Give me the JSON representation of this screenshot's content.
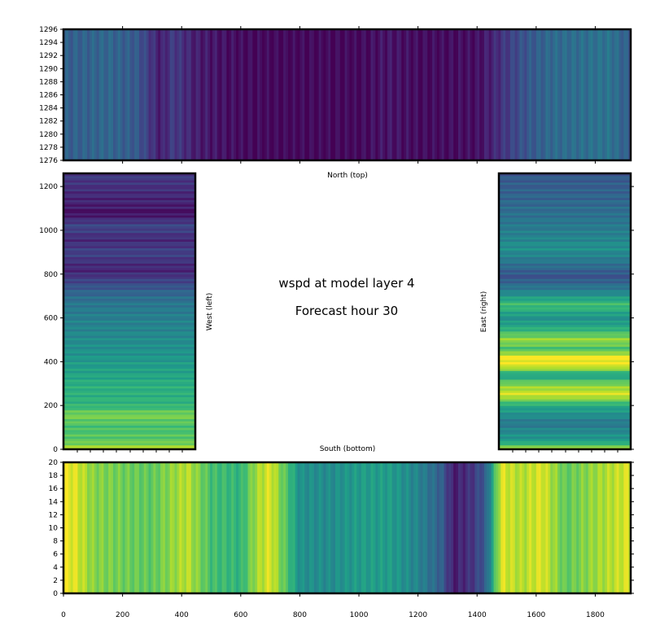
{
  "chart_data": [
    {
      "type": "heatmap",
      "panel": "north",
      "label": "North (top)",
      "colormap": "viridis",
      "x_ticks": [],
      "y_ticks": [
        1276,
        1278,
        1280,
        1282,
        1284,
        1286,
        1288,
        1290,
        1292,
        1294,
        1296
      ],
      "xlim": [
        0,
        1920
      ],
      "ylim": [
        1276,
        1296
      ],
      "x_tick_positions": [
        200,
        400,
        600,
        800,
        1000,
        1200,
        1400,
        1600,
        1800
      ],
      "profile_x": [
        0,
        150,
        250,
        300,
        330,
        370,
        450,
        600,
        700,
        800,
        1000,
        1100,
        1200,
        1300,
        1400,
        1450,
        1550,
        1650,
        1750,
        1850,
        1920
      ],
      "profile_v": [
        0.3,
        0.33,
        0.28,
        0.15,
        0.08,
        0.18,
        0.08,
        0.03,
        0.02,
        0.02,
        0.02,
        0.06,
        0.03,
        0.03,
        0.04,
        0.1,
        0.25,
        0.34,
        0.36,
        0.38,
        0.28
      ]
    },
    {
      "type": "heatmap",
      "panel": "west",
      "label": "West (left)",
      "colormap": "viridis",
      "x_ticks": [],
      "y_ticks": [
        0,
        200,
        400,
        600,
        800,
        1000,
        1200
      ],
      "xlim": [
        0,
        20
      ],
      "ylim": [
        0,
        1260
      ],
      "profile_y": [
        0,
        40,
        100,
        160,
        200,
        300,
        380,
        460,
        560,
        660,
        720,
        780,
        820,
        900,
        960,
        1020,
        1080,
        1130,
        1200,
        1260
      ],
      "profile_v": [
        0.9,
        0.75,
        0.7,
        0.8,
        0.65,
        0.62,
        0.55,
        0.5,
        0.45,
        0.4,
        0.32,
        0.18,
        0.1,
        0.2,
        0.12,
        0.22,
        0.04,
        0.1,
        0.14,
        0.18
      ]
    },
    {
      "type": "heatmap",
      "panel": "east",
      "label": "East (right)",
      "colormap": "viridis",
      "x_ticks": [],
      "y_ticks": [],
      "xlim": [
        0,
        20
      ],
      "ylim": [
        0,
        1260
      ],
      "profile_y": [
        0,
        40,
        120,
        200,
        250,
        300,
        340,
        380,
        420,
        460,
        500,
        560,
        600,
        660,
        720,
        790,
        860,
        920,
        1000,
        1100,
        1200,
        1260
      ],
      "profile_v": [
        0.9,
        0.55,
        0.4,
        0.6,
        0.95,
        0.8,
        0.55,
        0.95,
        1.0,
        0.7,
        0.85,
        0.6,
        0.5,
        0.7,
        0.45,
        0.25,
        0.4,
        0.5,
        0.42,
        0.35,
        0.3,
        0.28
      ]
    },
    {
      "type": "heatmap",
      "panel": "south",
      "label": "South (bottom)",
      "colormap": "viridis",
      "x_ticks": [
        0,
        200,
        400,
        600,
        800,
        1000,
        1200,
        1400,
        1600,
        1800
      ],
      "y_ticks": [
        0,
        2,
        4,
        6,
        8,
        10,
        12,
        14,
        16,
        18,
        20
      ],
      "xlim": [
        0,
        1920
      ],
      "ylim": [
        0,
        20
      ],
      "profile_x": [
        0,
        40,
        100,
        200,
        300,
        420,
        500,
        600,
        650,
        700,
        760,
        800,
        900,
        1000,
        1100,
        1200,
        1280,
        1320,
        1380,
        1430,
        1480,
        1550,
        1620,
        1700,
        1800,
        1920
      ],
      "profile_v": [
        0.98,
        0.95,
        0.82,
        0.78,
        0.75,
        0.9,
        0.7,
        0.65,
        0.85,
        0.95,
        0.7,
        0.5,
        0.48,
        0.55,
        0.55,
        0.45,
        0.3,
        0.08,
        0.15,
        0.3,
        0.95,
        0.88,
        0.95,
        0.75,
        0.85,
        0.95
      ]
    }
  ],
  "center_text": {
    "title": "wspd at model layer 4",
    "subtitle": "Forecast hour 30"
  }
}
